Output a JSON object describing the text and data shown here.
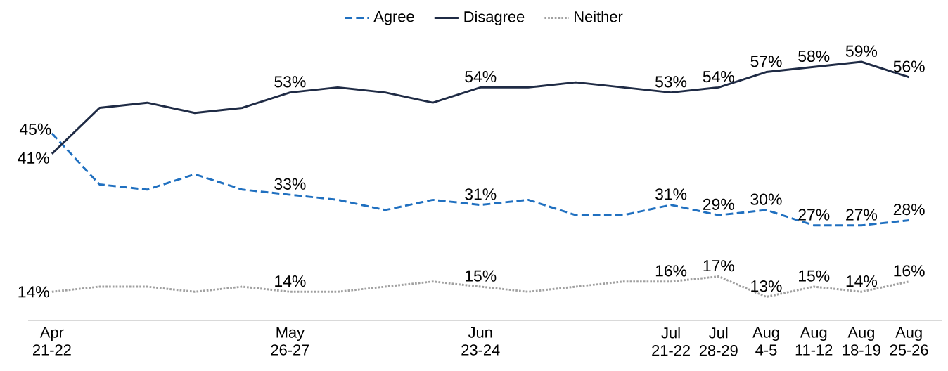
{
  "chart_data": {
    "type": "line",
    "categories": [
      "Apr 21-22",
      null,
      null,
      null,
      null,
      "May 26-27",
      null,
      null,
      null,
      "Jun 23-24",
      null,
      null,
      null,
      "Jul 21-22",
      "Jul 28-29",
      "Aug 4-5",
      "Aug 11-12",
      "Aug 18-19",
      "Aug 25-26"
    ],
    "series": [
      {
        "name": "Agree",
        "color": "#2070c0",
        "line_style": "dashed",
        "values": [
          45,
          35,
          34,
          37,
          34,
          33,
          32,
          30,
          32,
          31,
          32,
          29,
          29,
          31,
          29,
          30,
          27,
          27,
          28
        ],
        "value_labels": [
          "45%",
          null,
          null,
          null,
          null,
          "33%",
          null,
          null,
          null,
          "31%",
          null,
          null,
          null,
          "31%",
          "29%",
          "30%",
          "27%",
          "27%",
          "28%"
        ]
      },
      {
        "name": "Disagree",
        "color": "#1f2b45",
        "line_style": "solid",
        "values": [
          41,
          50,
          51,
          49,
          50,
          53,
          54,
          53,
          51,
          54,
          54,
          55,
          54,
          53,
          54,
          57,
          58,
          59,
          56
        ],
        "value_labels": [
          "41%",
          null,
          null,
          null,
          null,
          "53%",
          null,
          null,
          null,
          "54%",
          null,
          null,
          null,
          "53%",
          "54%",
          "57%",
          "58%",
          "59%",
          "56%"
        ]
      },
      {
        "name": "Neither",
        "color": "#a0a0a0",
        "line_style": "dotted",
        "values": [
          14,
          15,
          15,
          14,
          15,
          14,
          14,
          15,
          16,
          15,
          14,
          15,
          16,
          16,
          17,
          13,
          15,
          14,
          16
        ],
        "value_labels": [
          "14%",
          null,
          null,
          null,
          null,
          "14%",
          null,
          null,
          null,
          "15%",
          null,
          null,
          null,
          "16%",
          "17%",
          "13%",
          "15%",
          "14%",
          "16%"
        ]
      }
    ],
    "tick_labels": "x",
    "legend": "top"
  }
}
